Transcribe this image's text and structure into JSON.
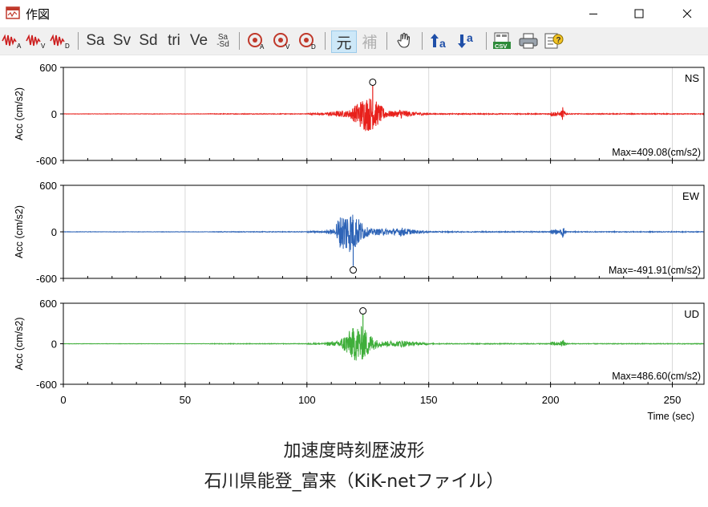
{
  "window": {
    "title": "作図",
    "controls": [
      "minimize",
      "maximize",
      "close"
    ]
  },
  "toolbar": {
    "sa_label": "Sa",
    "sv_label": "Sv",
    "sd_label": "Sd",
    "tri_label": "tri",
    "ve_label": "Ve",
    "sa_sd_top": "Sa",
    "sa_sd_bottom": "-Sd",
    "orig_label": "元",
    "corr_label": "補",
    "csv_label": "CSV",
    "icons": [
      "wave-acc-icon",
      "wave-vel-icon",
      "wave-disp-icon",
      "spectrum-acc-icon",
      "spectrum-vel-icon",
      "spectrum-disp-icon",
      "hand-icon",
      "arrow-up-icon",
      "arrow-down-icon",
      "csv-export-icon",
      "print-icon",
      "help-icon"
    ]
  },
  "chart_data": [
    {
      "type": "line",
      "component": "NS",
      "ylabel": "Acc (cm/s2)",
      "ylim": [
        -600,
        600
      ],
      "yticks": [
        "600",
        "0",
        "-600"
      ],
      "max_label": "Max=409.08(cm/s2)",
      "max_value": 409.08,
      "peak_time": 127,
      "color": "#e8201b",
      "strong_motion_window": [
        112,
        138
      ],
      "aftershock_time": 205
    },
    {
      "type": "line",
      "component": "EW",
      "ylabel": "Acc (cm/s2)",
      "ylim": [
        -600,
        600
      ],
      "yticks": [
        "600",
        "0",
        "-600"
      ],
      "max_label": "Max=-491.91(cm/s2)",
      "max_value": -491.91,
      "peak_time": 119,
      "color": "#2e64b7",
      "strong_motion_window": [
        112,
        138
      ],
      "aftershock_time": 205
    },
    {
      "type": "line",
      "component": "UD",
      "ylabel": "Acc (cm/s2)",
      "ylim": [
        -600,
        600
      ],
      "yticks": [
        "600",
        "0",
        "-600"
      ],
      "max_label": "Max=486.60(cm/s2)",
      "max_value": 486.6,
      "peak_time": 123,
      "color": "#3fae3a",
      "strong_motion_window": [
        112,
        138
      ],
      "aftershock_time": 205
    }
  ],
  "xaxis": {
    "label": "Time (sec)",
    "xlim": [
      0,
      263
    ],
    "ticks": [
      0,
      50,
      100,
      150,
      200,
      250
    ]
  },
  "caption": {
    "line1": "加速度時刻歴波形",
    "line2": "石川県能登_富来（KiK-netファイル）"
  }
}
